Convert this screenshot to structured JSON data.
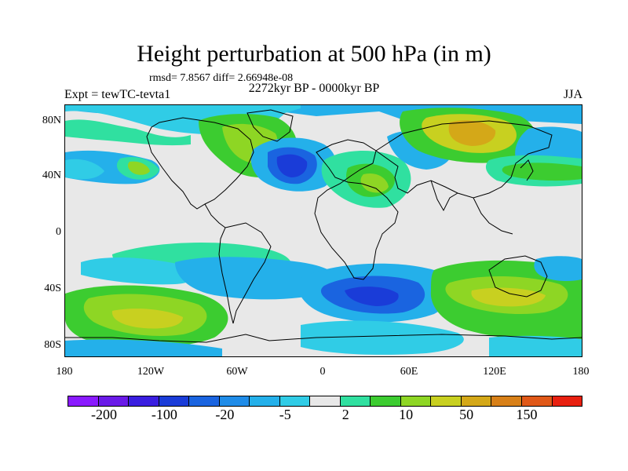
{
  "title": "Height perturbation at 500 hPa (in m)",
  "stats": "rmsd= 7.8567 diff= 2.66948e-08",
  "experiment": "Expt = tewTC-tevta1",
  "period": "2272kyr BP - 0000kyr BP",
  "season": "JJA",
  "lat_labels": [
    "80N",
    "40N",
    "0",
    "40S",
    "80S"
  ],
  "lon_labels": [
    "180",
    "120W",
    "60W",
    "0",
    "60E",
    "120E",
    "180"
  ],
  "colorbar": {
    "colors": [
      "#8a1aff",
      "#6a1ae8",
      "#3a1ee0",
      "#1a3cd8",
      "#1a64e0",
      "#1f8ce8",
      "#24b0ea",
      "#30cce6",
      "#e8e8e8",
      "#30e0a0",
      "#3ccc30",
      "#8ed624",
      "#c8d020",
      "#d4a818",
      "#d88018",
      "#e05818",
      "#e82010"
    ],
    "labels": [
      "-200",
      "-100",
      "-20",
      "-5",
      "2",
      "10",
      "50",
      "150"
    ]
  },
  "colors": {
    "background": "#e8e8e8",
    "strong_negative": "#1a3cd8",
    "negative": "#24b0ea",
    "weak_negative": "#30cce6",
    "weak_positive": "#30e0a0",
    "positive": "#3ccc30",
    "strong_positive": "#c8d020",
    "max_positive": "#d4a818"
  }
}
